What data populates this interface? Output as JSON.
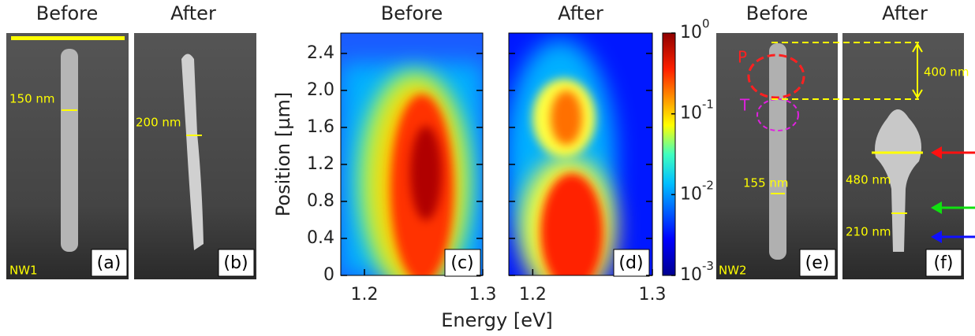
{
  "panel_a": {
    "title": "Before",
    "width_label": "150 nm",
    "sample": "NW1",
    "tag": "(a)"
  },
  "panel_b": {
    "title": "After",
    "width_label": "200 nm",
    "tag": "(b)"
  },
  "panel_c": {
    "title": "Before",
    "tag": "(c)"
  },
  "panel_d": {
    "title": "After",
    "tag": "(d)"
  },
  "heatmap_axes": {
    "ylabel": "Position [µm]",
    "xlabel": "Energy [eV]",
    "ylim": [
      0,
      2.62
    ],
    "yticks": [
      0,
      0.4,
      0.8,
      1.2,
      1.6,
      {
        "value": 2,
        "label": "2.0"
      },
      2.4
    ],
    "xlim": [
      1.18,
      1.3
    ],
    "xticks": [
      1.2,
      1.3
    ]
  },
  "colorbar": {
    "log_scale": true,
    "lim": [
      0.001,
      1
    ],
    "ticks": [
      {
        "value": 1,
        "label": "10",
        "exponent": "0"
      },
      {
        "value": 0.1,
        "label": "10",
        "exponent": "-1"
      },
      {
        "value": 0.01,
        "label": "10",
        "exponent": "-2"
      },
      {
        "value": 0.001,
        "label": "10",
        "exponent": "-3"
      }
    ]
  },
  "panel_e": {
    "title": "Before",
    "region_p": "P",
    "region_t": "T",
    "width_label": "155 nm",
    "sample": "NW2",
    "tag": "(e)"
  },
  "panel_f": {
    "title": "After",
    "height_label": "400 nm",
    "width_top_label": "480 nm",
    "width_bottom_label": "210 nm",
    "tag": "(f)"
  }
}
